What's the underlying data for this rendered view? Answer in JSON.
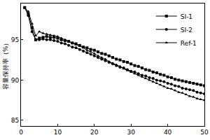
{
  "chart_data": {
    "type": "line",
    "y_label": "容量保持率（%）",
    "x": [
      1,
      2,
      3,
      4,
      5,
      6,
      7,
      8,
      9,
      10,
      11,
      12,
      13,
      14,
      15,
      16,
      17,
      18,
      19,
      20,
      21,
      22,
      23,
      24,
      25,
      26,
      27,
      28,
      29,
      30,
      31,
      32,
      33,
      34,
      35,
      36,
      37,
      38,
      39,
      40,
      41,
      42,
      43,
      44,
      45,
      46,
      47,
      48,
      49,
      50
    ],
    "series": [
      {
        "name": "SI-1",
        "color": "#000000",
        "marker": "square",
        "values": [
          99.0,
          98.2,
          96.5,
          95.0,
          95.2,
          95.3,
          95.4,
          95.3,
          95.3,
          95.2,
          95.0,
          94.9,
          94.8,
          94.6,
          94.5,
          94.3,
          94.1,
          94.0,
          93.8,
          93.7,
          93.5,
          93.3,
          93.2,
          93.0,
          92.8,
          92.6,
          92.5,
          92.3,
          92.2,
          92.0,
          91.8,
          91.7,
          91.5,
          91.3,
          91.2,
          91.0,
          90.9,
          90.7,
          90.6,
          90.4,
          90.3,
          90.1,
          90.0,
          89.9,
          89.8,
          89.7,
          89.6,
          89.5,
          89.4,
          89.3
        ]
      },
      {
        "name": "SI-2",
        "color": "#000000",
        "marker": "circle",
        "values": [
          99.0,
          98.0,
          96.0,
          95.0,
          95.0,
          95.1,
          95.0,
          95.0,
          94.9,
          94.8,
          94.6,
          94.5,
          94.3,
          94.1,
          94.0,
          93.8,
          93.6,
          93.4,
          93.2,
          93.0,
          92.8,
          92.6,
          92.4,
          92.2,
          92.0,
          91.8,
          91.6,
          91.5,
          91.3,
          91.1,
          91.0,
          90.8,
          90.6,
          90.5,
          90.3,
          90.2,
          90.0,
          89.9,
          89.8,
          89.6,
          89.5,
          89.3,
          89.2,
          89.0,
          88.9,
          88.8,
          88.7,
          88.5,
          88.4,
          88.3
        ]
      },
      {
        "name": "Ref-1",
        "color": "#000000",
        "marker": "triangle-up",
        "values": [
          99.0,
          98.5,
          97.0,
          95.5,
          96.0,
          95.8,
          95.7,
          95.6,
          95.5,
          95.4,
          95.2,
          95.0,
          94.8,
          94.6,
          94.4,
          94.2,
          94.0,
          93.7,
          93.5,
          93.3,
          93.0,
          92.8,
          92.6,
          92.3,
          92.1,
          91.9,
          91.7,
          91.4,
          91.2,
          91.0,
          90.8,
          90.6,
          90.4,
          90.2,
          90.0,
          89.8,
          89.6,
          89.4,
          89.2,
          89.0,
          88.9,
          88.7,
          88.5,
          88.4,
          88.2,
          88.0,
          87.9,
          87.7,
          87.6,
          87.5
        ]
      }
    ],
    "xlim": [
      0,
      50
    ],
    "xticks": [
      0,
      10,
      20,
      30,
      40,
      50
    ],
    "ylim": [
      84.3,
      99.5
    ],
    "yticks": [
      85,
      90,
      95
    ],
    "grid": false,
    "legend": "top right"
  }
}
